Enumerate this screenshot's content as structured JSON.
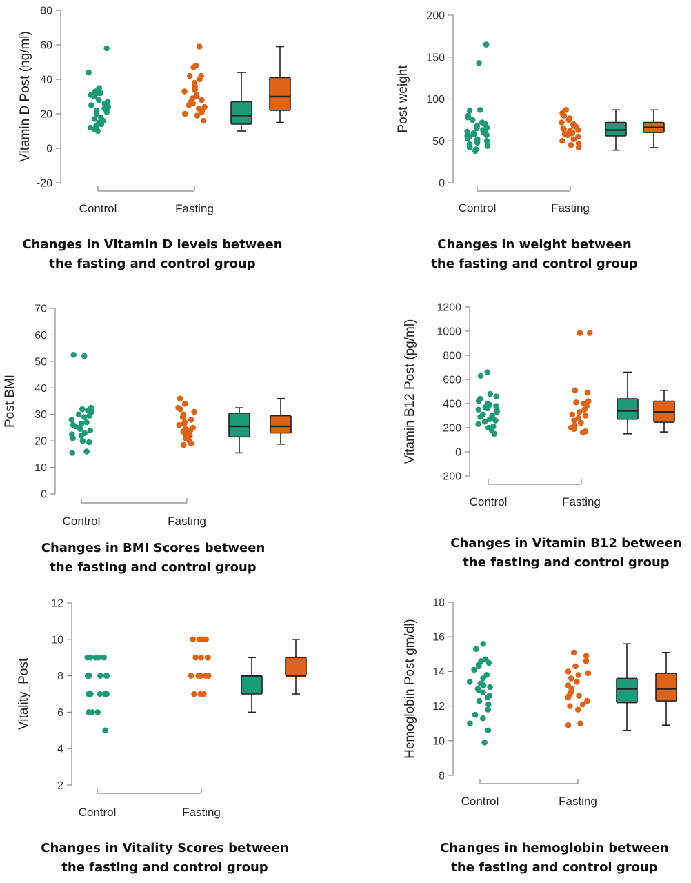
{
  "colors": {
    "control": "#1d9a78",
    "fasting": "#de6316",
    "axis": "#888888",
    "box_line": "#222222"
  },
  "chart_data": [
    {
      "type": "scatter",
      "title": "Changes in Vitamin D levels between the fasting and control group",
      "title_lines": [
        "Changes in Vitamin D levels between",
        "the fasting and control group"
      ],
      "ylabel": "Vitamin D Post (ng/ml)",
      "ylim": [
        -20,
        80
      ],
      "yticks": [
        "-20",
        "0",
        "20",
        "40",
        "60",
        "80"
      ],
      "categories": [
        "Control",
        "Fasting"
      ],
      "points": {
        "Control": [
          58,
          44,
          35,
          33,
          32,
          32,
          31,
          30,
          28,
          27,
          26,
          25,
          24,
          23,
          22,
          21,
          20,
          18,
          17,
          16,
          15,
          14,
          13,
          12,
          11,
          10
        ],
        "Fasting": [
          59,
          48,
          47,
          42,
          42,
          40,
          38,
          36,
          34,
          33,
          31,
          30,
          29,
          28,
          27,
          26,
          25,
          24,
          23,
          22,
          21,
          20,
          19,
          16
        ]
      },
      "boxes": [
        {
          "group": "Control",
          "min": 10,
          "q1": 14,
          "median": 19,
          "q3": 27,
          "max": 44
        },
        {
          "group": "Fasting",
          "min": 15,
          "q1": 22,
          "median": 30,
          "q3": 41,
          "max": 59
        }
      ]
    },
    {
      "type": "scatter",
      "title": "Changes in weight between the fasting and control group",
      "title_lines": [
        "Changes in weight  between",
        "the fasting and control group"
      ],
      "ylabel": "Post weight",
      "ylim": [
        0,
        200
      ],
      "yticks": [
        "0",
        "50",
        "100",
        "150",
        "200"
      ],
      "categories": [
        "Control",
        "Fasting"
      ],
      "points": {
        "Control": [
          165,
          143,
          87,
          86,
          80,
          78,
          75,
          72,
          70,
          68,
          66,
          65,
          63,
          62,
          61,
          60,
          59,
          58,
          57,
          56,
          55,
          53,
          52,
          50,
          48,
          46,
          44,
          42,
          40,
          38
        ],
        "Fasting": [
          87,
          83,
          80,
          77,
          75,
          72,
          70,
          68,
          67,
          65,
          64,
          63,
          62,
          61,
          60,
          59,
          58,
          57,
          55,
          52,
          50,
          47,
          45,
          42
        ]
      },
      "boxes": [
        {
          "group": "Control",
          "min": 39,
          "q1": 56,
          "median": 63,
          "q3": 72,
          "max": 87
        },
        {
          "group": "Fasting",
          "min": 42,
          "q1": 60,
          "median": 66,
          "q3": 72,
          "max": 87
        }
      ]
    },
    {
      "type": "scatter",
      "title": "Changes in BMI Scores between the fasting and control group",
      "title_lines": [
        "Changes in BMI Scores between",
        "the fasting and control group"
      ],
      "ylabel": "Post BMI",
      "ylim": [
        0,
        70
      ],
      "yticks": [
        "0",
        "10",
        "20",
        "30",
        "40",
        "50",
        "60",
        "70"
      ],
      "categories": [
        "Control",
        "Fasting"
      ],
      "points": {
        "Control": [
          52.5,
          52,
          32.5,
          32,
          31.5,
          31,
          30,
          29.5,
          29,
          28,
          27,
          26.5,
          26,
          25.5,
          25,
          24.5,
          24,
          23,
          22.5,
          22,
          21,
          20,
          19.5,
          16,
          15.5
        ],
        "Fasting": [
          36,
          34,
          32.5,
          32,
          31,
          30,
          29,
          28,
          27,
          26.5,
          26,
          25,
          24.5,
          24,
          23.5,
          23,
          22.5,
          22,
          21,
          20,
          19,
          18.5
        ]
      },
      "boxes": [
        {
          "group": "Control",
          "min": 15.5,
          "q1": 21.5,
          "median": 25.5,
          "q3": 30.5,
          "max": 32.5
        },
        {
          "group": "Fasting",
          "min": 18.8,
          "q1": 23,
          "median": 25.5,
          "q3": 29.5,
          "max": 36
        }
      ]
    },
    {
      "type": "scatter",
      "title": "Changes in Vitamin B12 between the fasting and control group",
      "title_lines": [
        "Changes in Vitamin B12 between",
        "the fasting and control group"
      ],
      "ylabel": "Vitamin B12 Post (pg/ml)",
      "ylim": [
        -200,
        1200
      ],
      "yticks": [
        "-200",
        "0",
        "200",
        "400",
        "600",
        "800",
        "1000",
        "1200"
      ],
      "categories": [
        "Control",
        "Fasting"
      ],
      "points": {
        "Control": [
          660,
          630,
          480,
          460,
          440,
          420,
          400,
          390,
          380,
          370,
          360,
          350,
          340,
          330,
          310,
          300,
          290,
          280,
          270,
          260,
          250,
          230,
          210,
          200,
          180,
          150
        ],
        "Fasting": [
          985,
          985,
          510,
          490,
          420,
          410,
          400,
          380,
          350,
          330,
          310,
          300,
          280,
          260,
          240,
          220,
          200,
          190,
          170,
          160
        ]
      },
      "boxes": [
        {
          "group": "Control",
          "min": 150,
          "q1": 270,
          "median": 340,
          "q3": 440,
          "max": 660
        },
        {
          "group": "Fasting",
          "min": 165,
          "q1": 245,
          "median": 330,
          "q3": 420,
          "max": 510
        }
      ]
    },
    {
      "type": "scatter",
      "title": "Changes in Vitality Scores between the fasting and control group",
      "title_lines": [
        "Changes in Vitality Scores between",
        "the fasting and control group"
      ],
      "ylabel": "Vitality_Post",
      "ylim": [
        2,
        12
      ],
      "yticks": [
        "2",
        "4",
        "6",
        "8",
        "10",
        "12"
      ],
      "categories": [
        "Control",
        "Fasting"
      ],
      "points": {
        "Control": [
          9,
          9,
          9,
          9,
          9,
          8,
          8,
          8,
          8,
          8,
          8,
          7,
          7,
          7,
          7,
          7,
          6,
          6,
          6,
          5
        ],
        "Fasting": [
          10,
          10,
          10,
          10,
          10,
          9,
          9,
          9,
          9,
          8,
          8,
          8,
          8,
          8,
          7,
          7,
          7
        ]
      },
      "boxes": [
        {
          "group": "Control",
          "min": 6,
          "q1": 7,
          "median": 8,
          "q3": 8,
          "max": 9
        },
        {
          "group": "Fasting",
          "min": 7,
          "q1": 8,
          "median": 8,
          "q3": 9,
          "max": 10
        }
      ]
    },
    {
      "type": "scatter",
      "title": "Changes in hemoglobin between the fasting and control group",
      "title_lines": [
        "Changes in hemoglobin between",
        "the fasting and control group"
      ],
      "ylabel": "Hemoglobin Post gm/dl)",
      "ylim": [
        8,
        18
      ],
      "yticks": [
        "8",
        "10",
        "12",
        "14",
        "16",
        "18"
      ],
      "categories": [
        "Control",
        "Fasting"
      ],
      "points": {
        "Control": [
          15.6,
          15.3,
          14.7,
          14.6,
          14.5,
          14.4,
          14.3,
          14.1,
          13.8,
          13.6,
          13.4,
          13.3,
          13.2,
          13.1,
          13.0,
          12.9,
          12.8,
          12.6,
          12.5,
          12.3,
          12.1,
          11.8,
          11.5,
          11.3,
          11.0,
          10.6,
          9.9
        ],
        "Fasting": [
          15.1,
          14.9,
          14.6,
          14.3,
          14.0,
          13.9,
          13.8,
          13.6,
          13.4,
          13.2,
          13.0,
          12.8,
          12.6,
          12.6,
          12.5,
          12.3,
          12.1,
          12.0,
          11.8,
          11.0,
          10.9
        ]
      },
      "boxes": [
        {
          "group": "Control",
          "min": 10.6,
          "q1": 12.2,
          "median": 13.0,
          "q3": 13.6,
          "max": 15.6
        },
        {
          "group": "Fasting",
          "min": 10.9,
          "q1": 12.3,
          "median": 13.0,
          "q3": 13.9,
          "max": 15.1
        }
      ]
    }
  ]
}
